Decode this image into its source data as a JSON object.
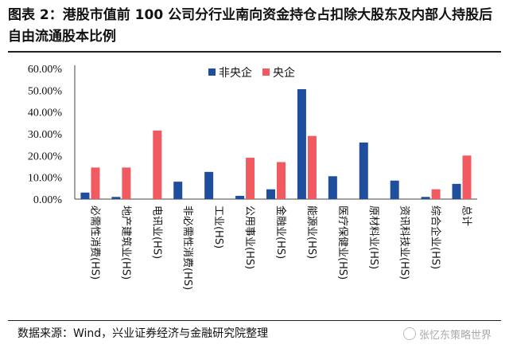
{
  "title": "图表 2：港股市值前 100 公司分行业南向资金持仓占扣除大股东及内部人持股后自由流通股本比例",
  "footer": "数据来源：Wind，兴业证券经济与金融研究院整理",
  "watermark": "张忆东策略世界",
  "chart_data": {
    "type": "bar",
    "categories": [
      "必需性消费(HS)",
      "地产建筑业(HS)",
      "电讯业(HS)",
      "非必需性消费(HS)",
      "工业(HS)",
      "公用事业(HS)",
      "金融业(HS)",
      "能源业(HS)",
      "医疗保健业(HS)",
      "原材料业(HS)",
      "资讯科技业(HS)",
      "综合企业(HS)",
      "总计"
    ],
    "series": [
      {
        "name": "非央企",
        "color": "#1f4e9c",
        "values": [
          3.0,
          1.0,
          0.0,
          8.0,
          12.5,
          1.5,
          4.5,
          50.5,
          10.5,
          26.0,
          8.5,
          1.0,
          7.0
        ]
      },
      {
        "name": "央企",
        "color": "#f05a60",
        "values": [
          14.5,
          14.5,
          31.5,
          0.0,
          0.0,
          19.0,
          17.0,
          29.0,
          0.0,
          0.0,
          0.0,
          4.5,
          20.0
        ]
      }
    ],
    "ylim": [
      0,
      60
    ],
    "yticks": [
      "0.00%",
      "10.00%",
      "20.00%",
      "30.00%",
      "40.00%",
      "50.00%",
      "60.00%"
    ],
    "legend": "top-center"
  }
}
